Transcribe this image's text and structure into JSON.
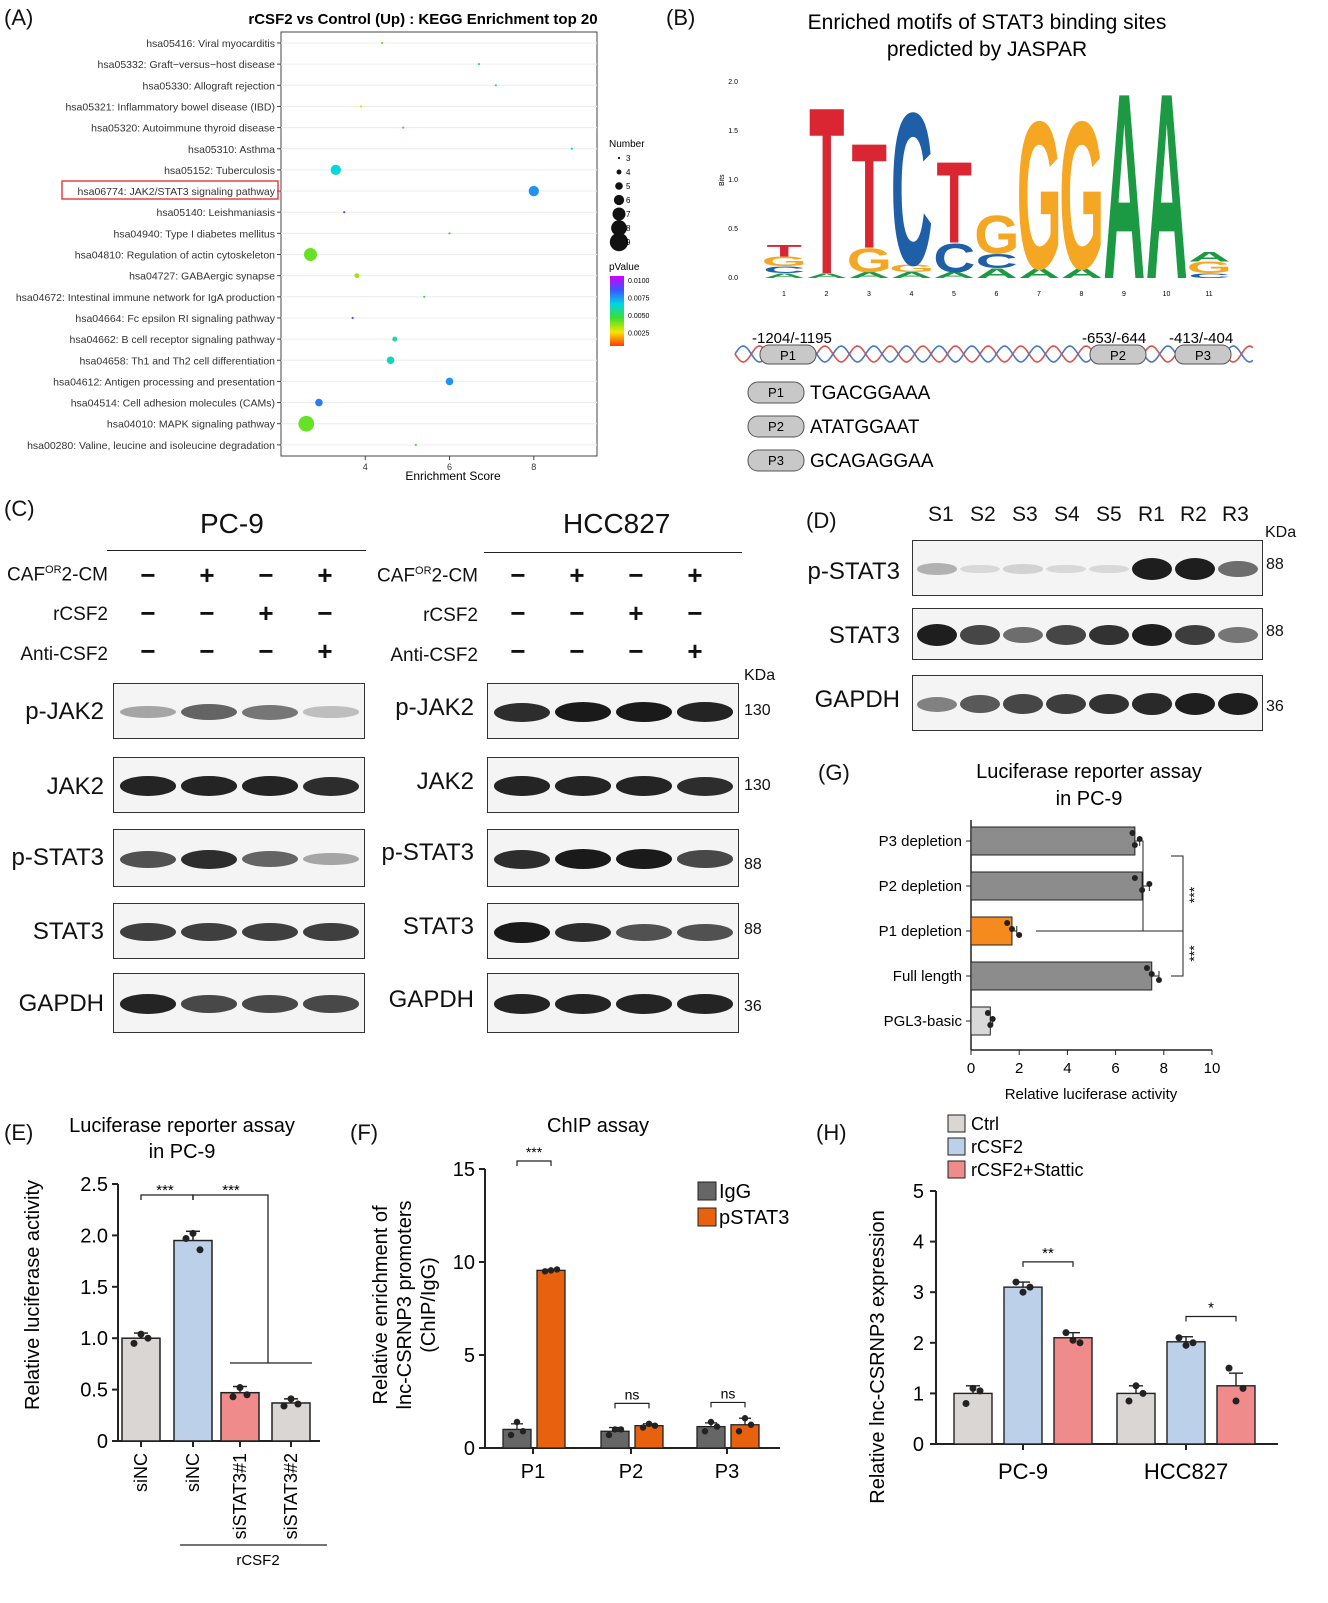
{
  "figure": {
    "panel_labels": {
      "A": "(A)",
      "B": "(B)",
      "C": "(C)",
      "D": "(D)",
      "E": "(E)",
      "F": "(F)",
      "G": "(G)",
      "H": "(H)"
    }
  },
  "panelA": {
    "title": "rCSF2 vs Control (Up) : KEGG Enrichment top 20",
    "xlabel": "Enrichment Score",
    "legend_number_title": "Number",
    "legend_number_values": [
      "3",
      "4",
      "5",
      "6",
      "7",
      "8",
      "9"
    ],
    "legend_pvalue_title": "pValue",
    "legend_pvalue_ticks": [
      "0.0100",
      "0.0075",
      "0.0050",
      "0.0025"
    ],
    "highlighted_term": "hsa06774: JAK2/STAT3 signaling pathway"
  },
  "panelB": {
    "title_line1": "Enriched motifs of STAT3 binding sites",
    "title_line2": "predicted by JASPAR",
    "ylabel": "Bits",
    "yticks": [
      "2.0",
      "1.5",
      "1.0",
      "0.5",
      "0.0"
    ],
    "positions": [
      "1",
      "2",
      "3",
      "4",
      "5",
      "6",
      "7",
      "8",
      "9",
      "10",
      "11"
    ],
    "site_positions": [
      "-1204/-1195",
      "-653/-644",
      "-413/-404"
    ],
    "sites": [
      {
        "name": "P1",
        "seq": "TGACGGAAA"
      },
      {
        "name": "P2",
        "seq": "ATATGGAAT"
      },
      {
        "name": "P3",
        "seq": "GCAGAGGAA"
      }
    ]
  },
  "panelC": {
    "left_title": "PC-9",
    "right_title": "HCC827",
    "conditions": [
      "CAF",
      "OR",
      "2-CM",
      "rCSF2",
      "Anti-CSF2"
    ],
    "signs": [
      [
        "−",
        "+",
        "−",
        "+"
      ],
      [
        "−",
        "−",
        "+",
        "−"
      ],
      [
        "−",
        "−",
        "−",
        "+"
      ]
    ],
    "kda_label": "KDa",
    "blots": [
      "p-JAK2",
      "JAK2",
      "p-STAT3",
      "STAT3",
      "GAPDH"
    ],
    "kda": [
      "130",
      "130",
      "88",
      "88",
      "36"
    ]
  },
  "panelD": {
    "lanes": [
      "S1",
      "S2",
      "S3",
      "S4",
      "S5",
      "R1",
      "R2",
      "R3"
    ],
    "kda_label": "KDa",
    "blots": [
      "p-STAT3",
      "STAT3",
      "GAPDH"
    ],
    "kda": [
      "88",
      "88",
      "36"
    ]
  },
  "chart_data": [
    {
      "id": "A",
      "type": "scatter",
      "title": "rCSF2 vs Control (Up) : KEGG Enrichment top 20",
      "xlabel": "Enrichment Score",
      "xticks": [
        4,
        6,
        8
      ],
      "xlim": [
        2,
        9.5
      ],
      "categories": [
        "hsa05416: Viral myocarditis",
        "hsa05332: Graft−versus−host disease",
        "hsa05330: Allograft rejection",
        "hsa05321: Inflammatory bowel disease (IBD)",
        "hsa05320: Autoimmune thyroid disease",
        "hsa05310: Asthma",
        "hsa05152: Tuberculosis",
        "hsa06774: JAK2/STAT3 signaling pathway",
        "hsa05140: Leishmaniasis",
        "hsa04940: Type I diabetes mellitus",
        "hsa04810: Regulation of actin cytoskeleton",
        "hsa04727: GABAergic synapse",
        "hsa04672: Intestinal immune network for IgA production",
        "hsa04664: Fc epsilon RI signaling pathway",
        "hsa04662: B cell receptor signaling pathway",
        "hsa04658: Th1 and Th2 cell differentiation",
        "hsa04612: Antigen processing and presentation",
        "hsa04514: Cell adhesion molecules (CAMs)",
        "hsa04010: MAPK signaling pathway",
        "hsa00280: Valine, leucine and isoleucine degradation"
      ],
      "enrichment": [
        4.4,
        6.7,
        7.1,
        3.9,
        4.9,
        8.9,
        3.3,
        8.0,
        3.5,
        6.0,
        2.7,
        3.8,
        5.4,
        3.7,
        4.7,
        4.6,
        6.0,
        2.9,
        2.6,
        5.2
      ],
      "number": [
        3,
        3,
        3,
        3,
        3,
        3,
        6,
        6,
        3,
        3,
        7,
        4,
        3,
        3,
        4,
        5,
        5,
        5,
        8,
        3
      ],
      "pvalue": [
        0.0045,
        0.0055,
        0.006,
        0.0035,
        0.0048,
        0.0065,
        0.0065,
        0.0075,
        0.009,
        0.0052,
        0.0045,
        0.004,
        0.0052,
        0.0088,
        0.0058,
        0.0062,
        0.0075,
        0.0078,
        0.0045,
        0.0048
      ]
    },
    {
      "id": "E",
      "type": "bar",
      "title": "Luciferase reporter assay in PC-9",
      "ylabel": "Relative luciferase activity",
      "categories": [
        "siNC",
        "siNC",
        "siSTAT3#1",
        "siSTAT3#2"
      ],
      "group_label": "rCSF2",
      "values": [
        1.0,
        1.95,
        0.47,
        0.37
      ],
      "errors": [
        0.05,
        0.09,
        0.06,
        0.04
      ],
      "points": [
        [
          0.95,
          1.04,
          1.0
        ],
        [
          1.97,
          2.02,
          1.86
        ],
        [
          0.43,
          0.52,
          0.45
        ],
        [
          0.34,
          0.41,
          0.36
        ]
      ],
      "colors": [
        "#d9d6d3",
        "#bcd0ea",
        "#f08b8b",
        "#d9d6d3"
      ],
      "ylim": [
        0,
        2.5
      ],
      "yticks": [
        "0",
        "0.5",
        "1.0",
        "1.5",
        "2.0",
        "2.5"
      ],
      "significance": [
        "***",
        "***"
      ]
    },
    {
      "id": "F",
      "type": "bar",
      "title": "ChIP assay",
      "ylabel_line1": "Relative enrichment of",
      "ylabel_line2": "lnc-CSRNP3 promoters",
      "ylabel_line3": "(ChIP/IgG)",
      "categories": [
        "P1",
        "P2",
        "P3"
      ],
      "series": [
        {
          "name": "IgG",
          "values": [
            1.0,
            0.9,
            1.15
          ],
          "errors": [
            0.3,
            0.2,
            0.2
          ],
          "points": [
            [
              0.7,
              1.4,
              0.9
            ],
            [
              0.7,
              1.0,
              1.0
            ],
            [
              0.9,
              1.4,
              1.15
            ]
          ]
        },
        {
          "name": "pSTAT3",
          "values": [
            9.55,
            1.2,
            1.25
          ],
          "errors": [
            0.05,
            0.1,
            0.35
          ],
          "points": [
            [
              9.5,
              9.55,
              9.6
            ],
            [
              1.1,
              1.3,
              1.2
            ],
            [
              0.9,
              1.6,
              1.25
            ]
          ]
        }
      ],
      "series_colors": [
        "#666666",
        "#e8610f"
      ],
      "ylim": [
        0,
        15
      ],
      "yticks": [
        "0",
        "5",
        "10",
        "15"
      ],
      "significance": [
        "***",
        "ns",
        "ns"
      ]
    },
    {
      "id": "G",
      "type": "bar",
      "orientation": "horizontal",
      "title": "Luciferase reporter assay in PC-9",
      "xlabel": "Relative luciferase activity",
      "categories": [
        "P3 depletion",
        "P2 depletion",
        "P1 depletion",
        "Full length",
        "PGL3-basic"
      ],
      "values": [
        6.8,
        7.1,
        1.7,
        7.5,
        0.8
      ],
      "errors": [
        0.2,
        0.3,
        0.2,
        0.3,
        0.1
      ],
      "points": [
        [
          6.7,
          7.0,
          6.8
        ],
        [
          6.8,
          7.4,
          7.1
        ],
        [
          1.5,
          1.7,
          2.0
        ],
        [
          7.3,
          7.5,
          7.8
        ],
        [
          0.7,
          0.9,
          0.8
        ]
      ],
      "colors": [
        "#8c8c8c",
        "#8c8c8c",
        "#f58a1f",
        "#8c8c8c",
        "#d9d9d9"
      ],
      "xlim": [
        0,
        10
      ],
      "xticks": [
        "0",
        "2",
        "4",
        "6",
        "8",
        "10"
      ],
      "significance": [
        "***",
        "***"
      ]
    },
    {
      "id": "H",
      "type": "bar",
      "ylabel": "Relative lnc-CSRNP3 expression",
      "categories": [
        "PC-9",
        "HCC827"
      ],
      "series": [
        {
          "name": "Ctrl",
          "values": [
            1.0,
            1.0
          ],
          "errors": [
            0.15,
            0.15
          ],
          "points": [
            [
              0.8,
              1.1,
              1.05
            ],
            [
              0.85,
              1.15,
              1.0
            ]
          ]
        },
        {
          "name": "rCSF2",
          "values": [
            3.1,
            2.02
          ],
          "errors": [
            0.1,
            0.1
          ],
          "points": [
            [
              3.2,
              3.0,
              3.1
            ],
            [
              2.1,
              1.95,
              2.0
            ]
          ]
        },
        {
          "name": "rCSF2+Stattic",
          "values": [
            2.1,
            1.15
          ],
          "errors": [
            0.1,
            0.25
          ],
          "points": [
            [
              2.2,
              2.05,
              2.0
            ],
            [
              1.5,
              0.85,
              1.1
            ]
          ]
        }
      ],
      "series_colors": [
        "#d9d6d3",
        "#bcd0ea",
        "#f08b8b"
      ],
      "ylim": [
        0,
        5
      ],
      "yticks": [
        "0",
        "1",
        "2",
        "3",
        "4",
        "5"
      ],
      "significance": [
        "**",
        "*"
      ]
    }
  ]
}
